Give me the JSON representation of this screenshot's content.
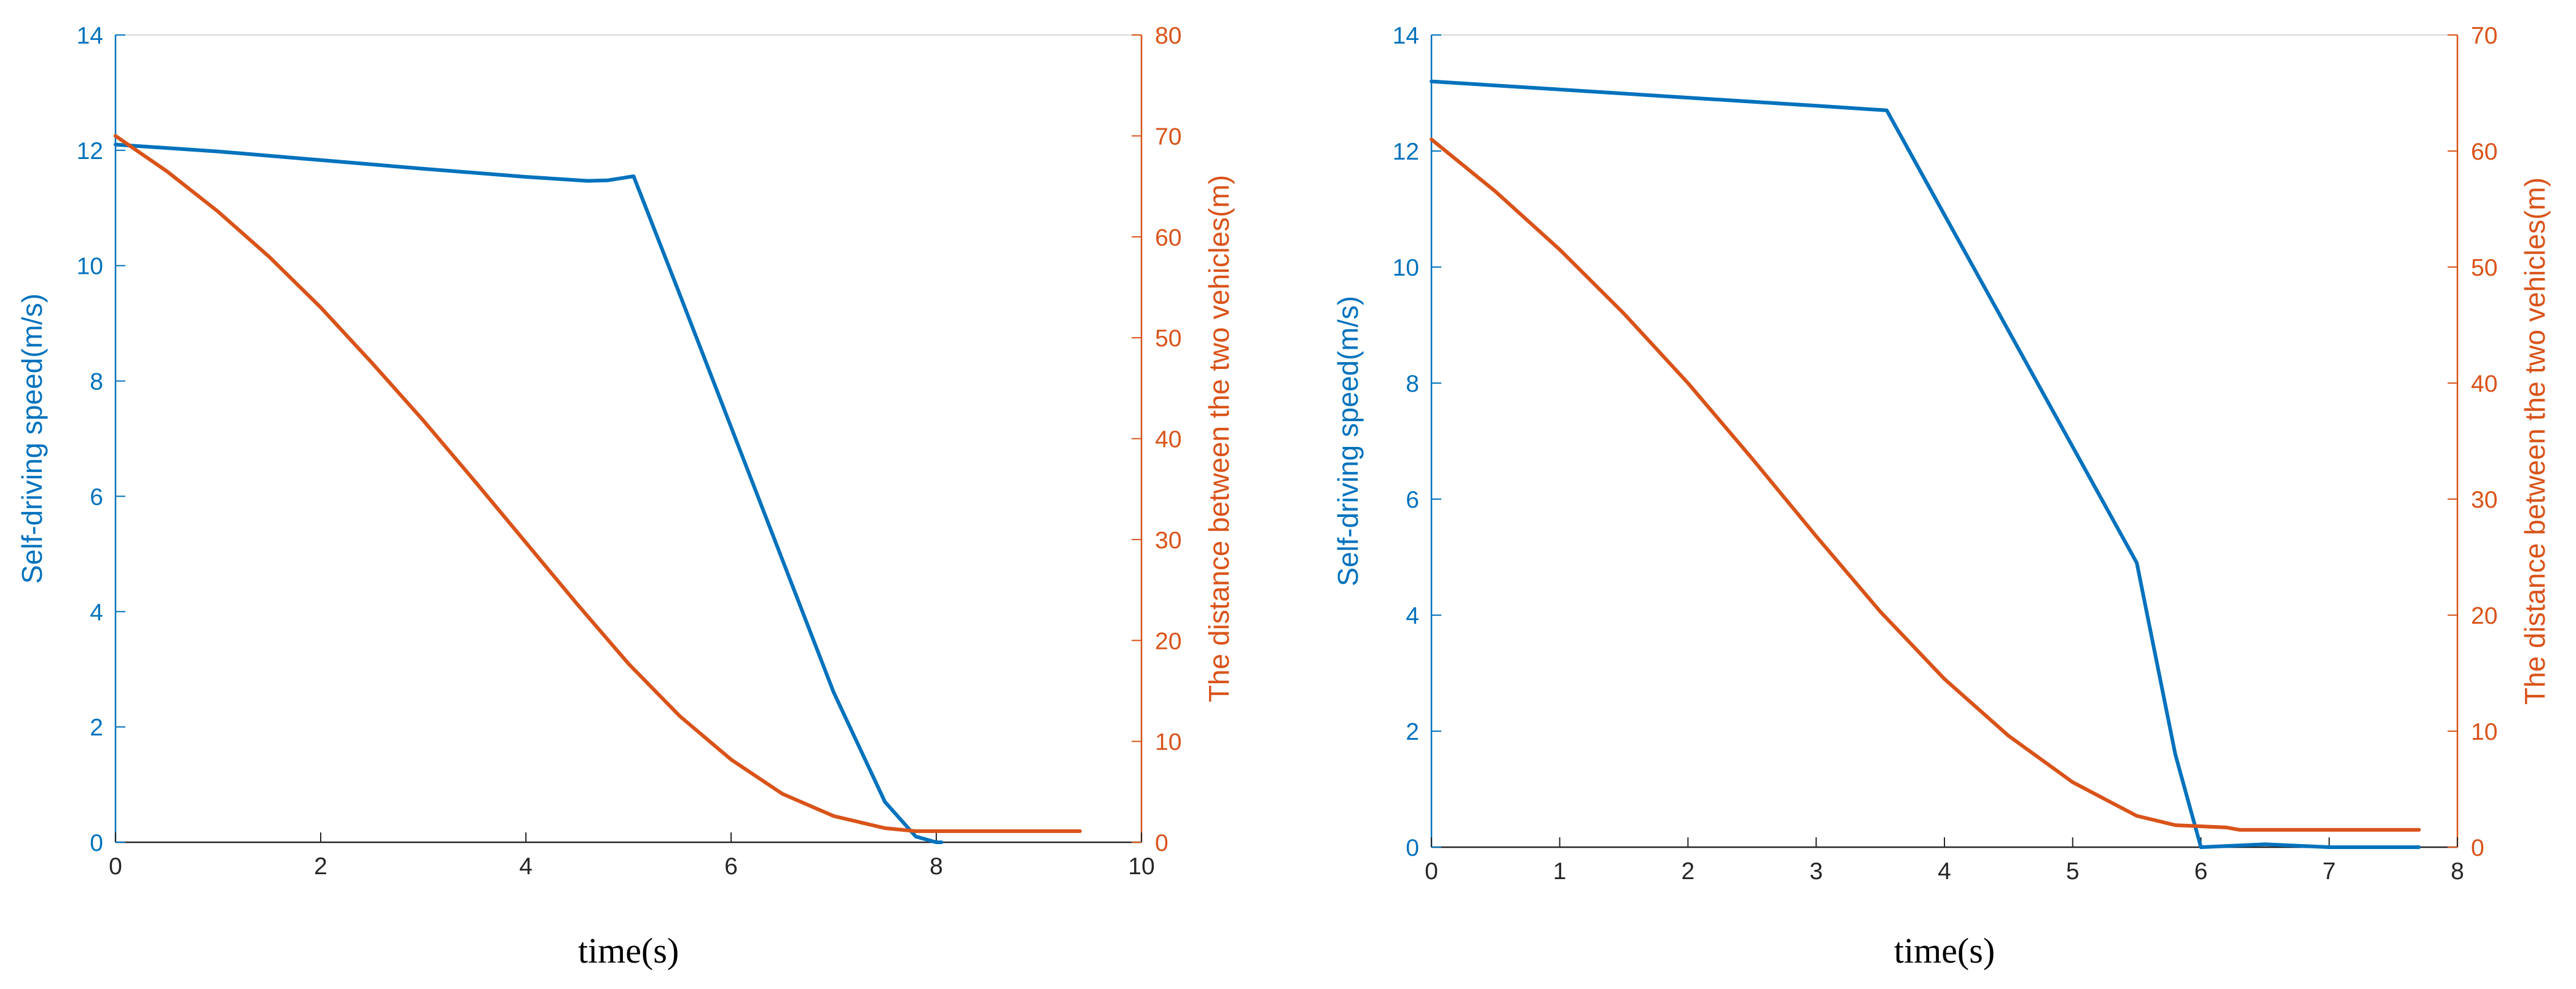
{
  "colors": {
    "speed": "#0072BD",
    "distance": "#D95319",
    "axis": "#262626"
  },
  "chart_data": [
    {
      "type": "line",
      "xlabel": "time(s)",
      "ylabel_left": "Self-driving speed(m/s)",
      "ylabel_right": "The distance between the two vehicles(m)",
      "xlim": [
        0,
        10
      ],
      "ylim_left": [
        0,
        14
      ],
      "ylim_right": [
        0,
        80
      ],
      "xticks": [
        0,
        2,
        4,
        6,
        8,
        10
      ],
      "yticks_left": [
        0,
        2,
        4,
        6,
        8,
        10,
        12,
        14
      ],
      "yticks_right": [
        0,
        10,
        20,
        30,
        40,
        50,
        60,
        70,
        80
      ],
      "grid": false,
      "series": [
        {
          "axis": "left",
          "x": [
            0,
            1,
            2,
            3,
            4,
            4.6,
            4.8,
            5.05,
            5.5,
            6,
            6.5,
            7,
            7.5,
            7.8,
            8,
            8.05
          ],
          "y": [
            12.1,
            11.98,
            11.83,
            11.68,
            11.54,
            11.47,
            11.48,
            11.55,
            9.5,
            7.2,
            4.9,
            2.6,
            0.7,
            0.1,
            0,
            0
          ]
        },
        {
          "axis": "right",
          "x": [
            0,
            0.5,
            1,
            1.5,
            2,
            2.5,
            3,
            3.5,
            4,
            4.5,
            5,
            5.5,
            6,
            6.5,
            7,
            7.5,
            7.8,
            8,
            8.5,
            9,
            9.4
          ],
          "y": [
            70,
            66.5,
            62.5,
            58,
            53,
            47.5,
            41.8,
            35.8,
            29.7,
            23.6,
            17.7,
            12.5,
            8.2,
            4.8,
            2.6,
            1.4,
            1.1,
            1.1,
            1.1,
            1.1,
            1.1
          ]
        }
      ]
    },
    {
      "type": "line",
      "xlabel": "time(s)",
      "ylabel_left": "Self-driving speed(m/s)",
      "ylabel_right": "The distance between the two vehicles(m)",
      "xlim": [
        0,
        8
      ],
      "ylim_left": [
        0,
        14
      ],
      "ylim_right": [
        0,
        70
      ],
      "xticks": [
        0,
        1,
        2,
        3,
        4,
        5,
        6,
        7,
        8
      ],
      "yticks_left": [
        0,
        2,
        4,
        6,
        8,
        10,
        12,
        14
      ],
      "yticks_right": [
        0,
        10,
        20,
        30,
        40,
        50,
        60,
        70
      ],
      "grid": false,
      "series": [
        {
          "axis": "left",
          "x": [
            0,
            1,
            2,
            3,
            3.55,
            4,
            4.5,
            5,
            5.5,
            5.8,
            6.0,
            6.2,
            6.5,
            7,
            7.7
          ],
          "y": [
            13.2,
            13.06,
            12.92,
            12.78,
            12.7,
            10.9,
            8.9,
            6.9,
            4.9,
            1.6,
            0,
            0.02,
            0.05,
            0,
            0
          ]
        },
        {
          "axis": "right",
          "x": [
            0,
            0.5,
            1,
            1.5,
            2,
            2.5,
            3,
            3.5,
            4,
            4.5,
            5,
            5.5,
            5.8,
            6,
            6.2,
            6.3,
            7,
            7.7
          ],
          "y": [
            61,
            56.5,
            51.5,
            46,
            40,
            33.5,
            26.8,
            20.3,
            14.5,
            9.6,
            5.6,
            2.7,
            1.9,
            1.8,
            1.7,
            1.5,
            1.5,
            1.5
          ]
        }
      ]
    }
  ]
}
